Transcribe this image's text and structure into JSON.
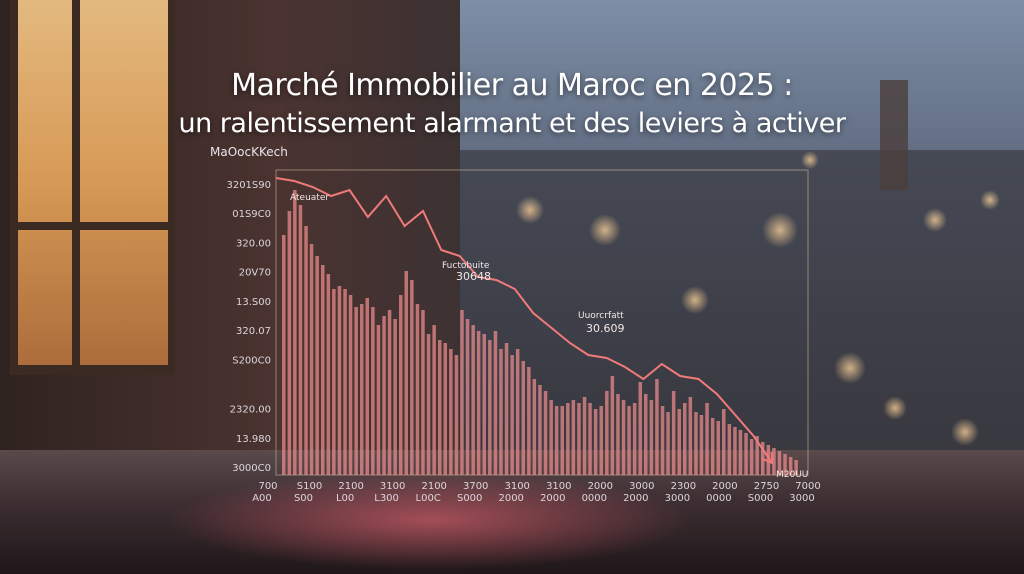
{
  "title": "Marché Immobilier au Maroc en 2025 :",
  "subtitle": "un ralentissement alarmant et des leviers à activer",
  "brand": "MaOocKKech",
  "colors": {
    "line": "#f07a7a",
    "bars": "#e88a8a",
    "frame": "#c9b59a"
  },
  "chart_data": {
    "type": "bar",
    "title": "",
    "xlabel": "",
    "ylabel": "",
    "ylim": [
      0,
      100
    ],
    "y_tick_labels": [
      "3201S90",
      "01S9C0",
      "320.00",
      "20V70",
      "13.S00",
      "320.07",
      "S200C0",
      "2320.00",
      "13.980",
      "3000C0"
    ],
    "x_tick_labels_top": [
      "700",
      "S100",
      "2100",
      "3100",
      "2100",
      "3700",
      "3100",
      "3100",
      "2000",
      "3000",
      "2300",
      "2000",
      "2750",
      "7000"
    ],
    "x_tick_labels_bottom": [
      "A00",
      "S00",
      "L00",
      "L300",
      "L00C",
      "S000",
      "2000",
      "2000",
      "0000",
      "2000",
      "3000",
      "0000",
      "S000",
      "3000"
    ],
    "bar_values": [
      80,
      88,
      95,
      90,
      83,
      77,
      73,
      70,
      67,
      62,
      63,
      62,
      60,
      56,
      57,
      59,
      56,
      50,
      53,
      55,
      52,
      60,
      68,
      65,
      57,
      55,
      47,
      50,
      45,
      44,
      42,
      40,
      55,
      52,
      50,
      48,
      47,
      45,
      48,
      42,
      44,
      40,
      42,
      38,
      36,
      32,
      30,
      28,
      25,
      23,
      23,
      24,
      25,
      24,
      26,
      24,
      22,
      23,
      28,
      33,
      27,
      25,
      23,
      24,
      31,
      27,
      25,
      32,
      23,
      21,
      28,
      22,
      24,
      26,
      21,
      20,
      24,
      19,
      18,
      22,
      17,
      16,
      15,
      14,
      12,
      13,
      11,
      10,
      9,
      8,
      7,
      6,
      5
    ],
    "series": [
      {
        "values": [
          99,
          98,
          96,
          93,
          95,
          86,
          93,
          83,
          88,
          75,
          73,
          66,
          65,
          62,
          54,
          49,
          44,
          40,
          39,
          36,
          32,
          37,
          33,
          32,
          27,
          20,
          13,
          4
        ]
      }
    ],
    "annotations": [
      {
        "label": "Ateuater",
        "value": ""
      },
      {
        "label": "Fuctobuite",
        "value": "30648"
      },
      {
        "label": "Uuorcrfatt",
        "value": "30.609"
      },
      {
        "label": "",
        "value": "M20UU"
      }
    ]
  }
}
